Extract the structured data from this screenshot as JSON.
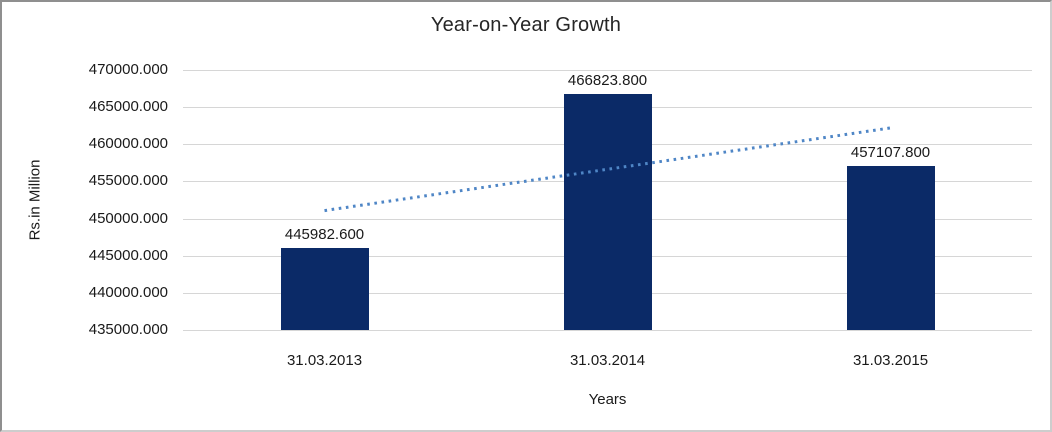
{
  "chart_data": {
    "type": "bar",
    "title": "Year-on-Year Growth",
    "xlabel": "Years",
    "ylabel": "Rs.in Million",
    "categories": [
      "31.03.2013",
      "31.03.2014",
      "31.03.2015"
    ],
    "values": [
      445982.6,
      466823.8,
      457107.8
    ],
    "value_labels": [
      "445982.600",
      "466823.800",
      "457107.800"
    ],
    "ylim": [
      435000,
      470000
    ],
    "ytick_step": 5000,
    "yticks": [
      "470000.000",
      "465000.000",
      "460000.000",
      "455000.000",
      "450000.000",
      "445000.000",
      "440000.000",
      "435000.000"
    ],
    "grid": "horizontal",
    "legend": "none",
    "colors": {
      "bar": "#0b2a67",
      "trendline": "#4f86c6",
      "gridline": "#d6d6d6",
      "text": "#1a1a1a"
    },
    "trendline": {
      "type": "linear",
      "style": "dotted"
    }
  }
}
